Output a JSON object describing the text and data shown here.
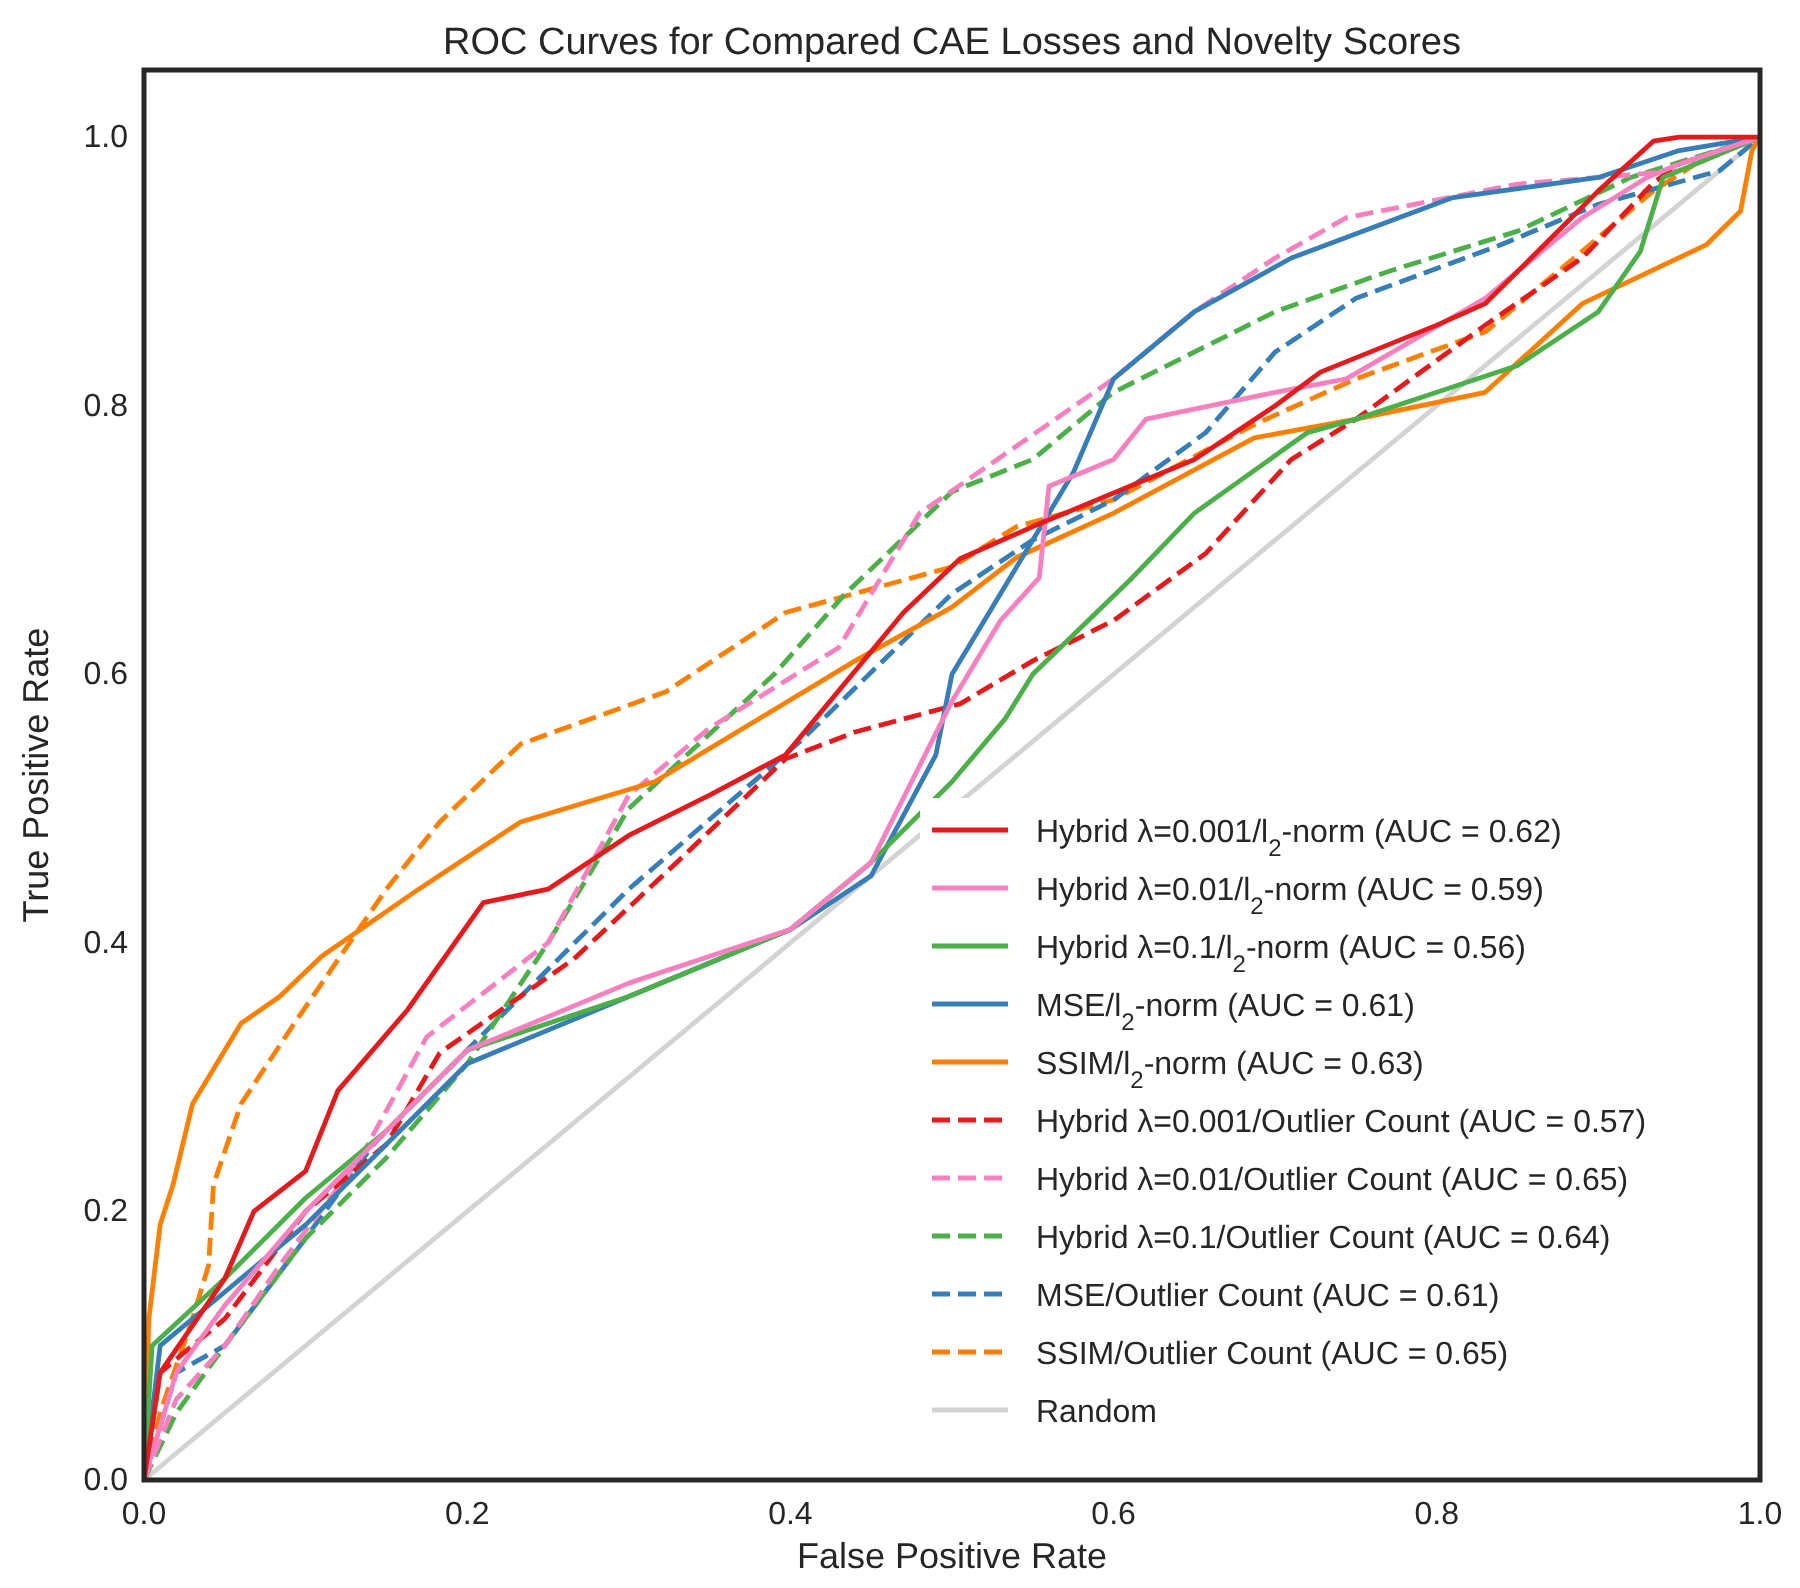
{
  "chart_data": {
    "type": "line",
    "title": "ROC Curves for Compared CAE Losses and Novelty Scores",
    "xlabel": "False Positive Rate",
    "ylabel": "True Positive Rate",
    "xlim": [
      0,
      1
    ],
    "ylim": [
      0,
      1.05
    ],
    "xticks": [
      {
        "value": 0,
        "label": "0.0"
      },
      {
        "value": 0.2,
        "label": "0.2"
      },
      {
        "value": 0.4,
        "label": "0.4"
      },
      {
        "value": 0.6,
        "label": "0.6"
      },
      {
        "value": 0.8,
        "label": "0.8"
      },
      {
        "value": 1,
        "label": "1.0"
      }
    ],
    "yticks": [
      {
        "value": 0,
        "label": "0.0"
      },
      {
        "value": 0.2,
        "label": "0.2"
      },
      {
        "value": 0.4,
        "label": "0.4"
      },
      {
        "value": 0.6,
        "label": "0.6"
      },
      {
        "value": 0.8,
        "label": "0.8"
      },
      {
        "value": 1,
        "label": "1.0"
      }
    ],
    "grid": false,
    "legend": "bottom right",
    "marker": "none",
    "series": [
      {
        "name": "Hybrid λ=0.001/l$_{2}$-norm (AUC = 0.62)",
        "color": "#e41a1c",
        "line_style": "solid",
        "x": [
          0,
          0.01,
          0.05,
          0.068,
          0.1,
          0.12,
          0.163,
          0.21,
          0.25,
          0.3,
          0.35,
          0.397,
          0.47,
          0.505,
          0.55,
          0.6,
          0.65,
          0.7,
          0.728,
          0.8,
          0.83,
          0.9,
          0.934,
          0.95,
          1
        ],
        "values": [
          0,
          0.08,
          0.15,
          0.2,
          0.23,
          0.29,
          0.35,
          0.43,
          0.44,
          0.48,
          0.51,
          0.54,
          0.646,
          0.686,
          0.71,
          0.735,
          0.76,
          0.8,
          0.825,
          0.86,
          0.876,
          0.96,
          0.997,
          1,
          1
        ]
      },
      {
        "name": "Hybrid λ=0.01/l$_{2}$-norm (AUC = 0.59)",
        "color": "#f781bf",
        "line_style": "solid",
        "x": [
          0,
          0.02,
          0.05,
          0.1,
          0.2,
          0.3,
          0.4,
          0.45,
          0.5,
          0.53,
          0.554,
          0.56,
          0.6,
          0.62,
          0.7,
          0.744,
          0.83,
          0.89,
          0.93,
          0.95,
          1
        ],
        "values": [
          0,
          0.08,
          0.13,
          0.2,
          0.32,
          0.37,
          0.41,
          0.46,
          0.58,
          0.64,
          0.672,
          0.74,
          0.76,
          0.79,
          0.81,
          0.82,
          0.88,
          0.94,
          0.97,
          0.98,
          1
        ]
      },
      {
        "name": "Hybrid λ=0.1/l$_{2}$-norm (AUC = 0.56)",
        "color": "#4daf4a",
        "line_style": "solid",
        "x": [
          0,
          0.005,
          0.05,
          0.1,
          0.15,
          0.2,
          0.3,
          0.4,
          0.45,
          0.5,
          0.533,
          0.55,
          0.61,
          0.65,
          0.72,
          0.75,
          0.8,
          0.85,
          0.9,
          0.926,
          0.94,
          1
        ],
        "values": [
          0,
          0.1,
          0.15,
          0.21,
          0.26,
          0.32,
          0.36,
          0.41,
          0.46,
          0.52,
          0.567,
          0.6,
          0.67,
          0.72,
          0.78,
          0.79,
          0.81,
          0.83,
          0.87,
          0.915,
          0.97,
          1
        ]
      },
      {
        "name": "MSE/l$_{2}$-norm (AUC = 0.61)",
        "color": "#377eb8",
        "line_style": "solid",
        "x": [
          0,
          0.01,
          0.05,
          0.1,
          0.2,
          0.3,
          0.4,
          0.45,
          0.49,
          0.5,
          0.53,
          0.575,
          0.6,
          0.65,
          0.71,
          0.81,
          0.9,
          0.95,
          1
        ],
        "values": [
          0,
          0.1,
          0.14,
          0.19,
          0.31,
          0.36,
          0.41,
          0.45,
          0.54,
          0.6,
          0.66,
          0.75,
          0.82,
          0.87,
          0.91,
          0.955,
          0.97,
          0.99,
          1
        ]
      },
      {
        "name": "SSIM/l$_{2}$-norm (AUC = 0.63)",
        "color": "#ff7f00",
        "line_style": "solid",
        "x": [
          0,
          0.003,
          0.01,
          0.018,
          0.03,
          0.06,
          0.084,
          0.11,
          0.17,
          0.233,
          0.316,
          0.44,
          0.5,
          0.54,
          0.6,
          0.687,
          0.75,
          0.83,
          0.89,
          0.967,
          0.988,
          0.995,
          1
        ],
        "values": [
          0,
          0.12,
          0.19,
          0.22,
          0.28,
          0.34,
          0.36,
          0.39,
          0.44,
          0.49,
          0.52,
          0.61,
          0.65,
          0.687,
          0.72,
          0.776,
          0.79,
          0.81,
          0.876,
          0.92,
          0.945,
          0.99,
          1
        ]
      },
      {
        "name": "Hybrid λ=0.001/Outlier Count (AUC = 0.57)",
        "color": "#e41a1c",
        "line_style": "dashed",
        "x": [
          0,
          0.01,
          0.05,
          0.1,
          0.15,
          0.183,
          0.266,
          0.328,
          0.397,
          0.44,
          0.505,
          0.55,
          0.6,
          0.657,
          0.71,
          0.75,
          0.83,
          0.89,
          0.934,
          0.95,
          1
        ],
        "values": [
          0,
          0.08,
          0.12,
          0.2,
          0.25,
          0.318,
          0.388,
          0.458,
          0.537,
          0.557,
          0.578,
          0.61,
          0.64,
          0.69,
          0.76,
          0.79,
          0.86,
          0.91,
          0.966,
          0.98,
          1
        ]
      },
      {
        "name": "Hybrid λ=0.01/Outlier Count (AUC = 0.65)",
        "color": "#f781bf",
        "line_style": "dashed",
        "x": [
          0,
          0.02,
          0.05,
          0.084,
          0.134,
          0.175,
          0.25,
          0.3,
          0.35,
          0.43,
          0.48,
          0.54,
          0.6,
          0.65,
          0.7,
          0.744,
          0.85,
          0.95,
          1
        ],
        "values": [
          0,
          0.06,
          0.1,
          0.16,
          0.24,
          0.33,
          0.4,
          0.51,
          0.56,
          0.62,
          0.72,
          0.77,
          0.82,
          0.87,
          0.91,
          0.94,
          0.965,
          0.975,
          1
        ]
      },
      {
        "name": "Hybrid λ=0.1/Outlier Count (AUC = 0.64)",
        "color": "#4daf4a",
        "line_style": "dashed",
        "x": [
          0,
          0.02,
          0.05,
          0.1,
          0.15,
          0.2,
          0.25,
          0.3,
          0.39,
          0.434,
          0.5,
          0.55,
          0.6,
          0.7,
          0.77,
          0.85,
          0.92,
          1
        ],
        "values": [
          0,
          0.05,
          0.1,
          0.18,
          0.24,
          0.31,
          0.4,
          0.5,
          0.6,
          0.66,
          0.736,
          0.76,
          0.81,
          0.87,
          0.9,
          0.93,
          0.97,
          1
        ]
      },
      {
        "name": "MSE/Outlier Count (AUC = 0.61)",
        "color": "#377eb8",
        "line_style": "dashed",
        "x": [
          0,
          0.02,
          0.05,
          0.1,
          0.142,
          0.233,
          0.3,
          0.406,
          0.5,
          0.55,
          0.6,
          0.657,
          0.7,
          0.75,
          0.84,
          0.9,
          0.975,
          1
        ],
        "values": [
          0,
          0.08,
          0.1,
          0.18,
          0.25,
          0.36,
          0.44,
          0.55,
          0.66,
          0.7,
          0.73,
          0.78,
          0.84,
          0.88,
          0.92,
          0.95,
          0.975,
          1
        ]
      },
      {
        "name": "SSIM/Outlier Count (AUC = 0.65)",
        "color": "#ff7f00",
        "line_style": "dashed",
        "x": [
          0,
          0.01,
          0.03,
          0.04,
          0.043,
          0.06,
          0.093,
          0.15,
          0.183,
          0.233,
          0.323,
          0.397,
          0.5,
          0.54,
          0.6,
          0.687,
          0.75,
          0.83,
          0.89,
          0.934,
          0.96,
          1
        ],
        "values": [
          0,
          0.05,
          0.12,
          0.16,
          0.22,
          0.28,
          0.34,
          0.44,
          0.49,
          0.548,
          0.587,
          0.646,
          0.68,
          0.71,
          0.73,
          0.786,
          0.82,
          0.855,
          0.915,
          0.96,
          0.98,
          1
        ]
      },
      {
        "name": "Random",
        "color": "#d3d3d3",
        "line_style": "solid",
        "x": [
          0,
          1
        ],
        "values": [
          0,
          1
        ]
      }
    ]
  }
}
